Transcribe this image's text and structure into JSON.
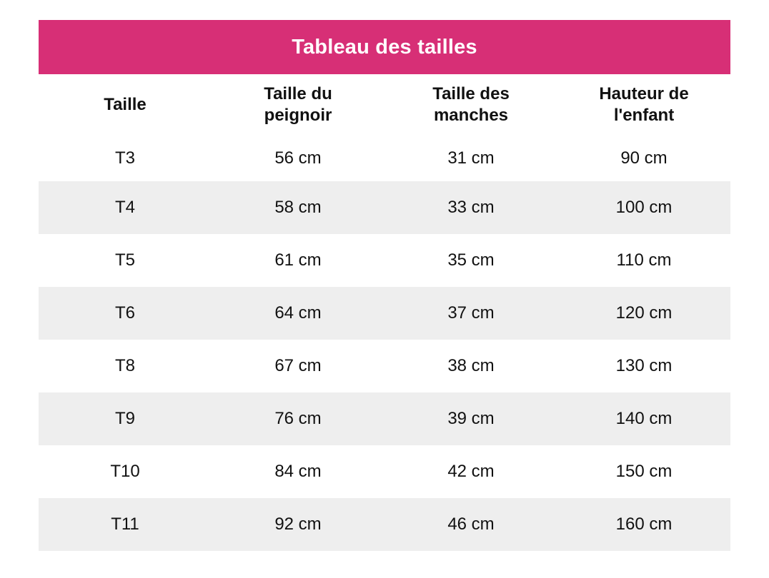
{
  "colors": {
    "header_bg": "#D72F76",
    "title_text": "#FFFFFF",
    "stripe": "#EEEEEE",
    "cell_text": "#111111",
    "page_bg": "#FFFFFF"
  },
  "chart_data": {
    "type": "table",
    "title": "Tableau des tailles",
    "columns": [
      "Taille",
      "Taille du peignoir",
      "Taille des manches",
      "Hauteur de l'enfant"
    ],
    "rows": [
      [
        "T3",
        "56 cm",
        "31 cm",
        "90 cm"
      ],
      [
        "T4",
        "58 cm",
        "33 cm",
        "100 cm"
      ],
      [
        "T5",
        "61 cm",
        "35 cm",
        "110 cm"
      ],
      [
        "T6",
        "64 cm",
        "37 cm",
        "120 cm"
      ],
      [
        "T8",
        "67 cm",
        "38 cm",
        "130 cm"
      ],
      [
        "T9",
        "76 cm",
        "39 cm",
        "140 cm"
      ],
      [
        "T10",
        "84 cm",
        "42 cm",
        "150 cm"
      ],
      [
        "T11",
        "92 cm",
        "46 cm",
        "160 cm"
      ]
    ],
    "layout": {
      "striping": "alternating rows, first data row white",
      "alignment": "center"
    }
  }
}
